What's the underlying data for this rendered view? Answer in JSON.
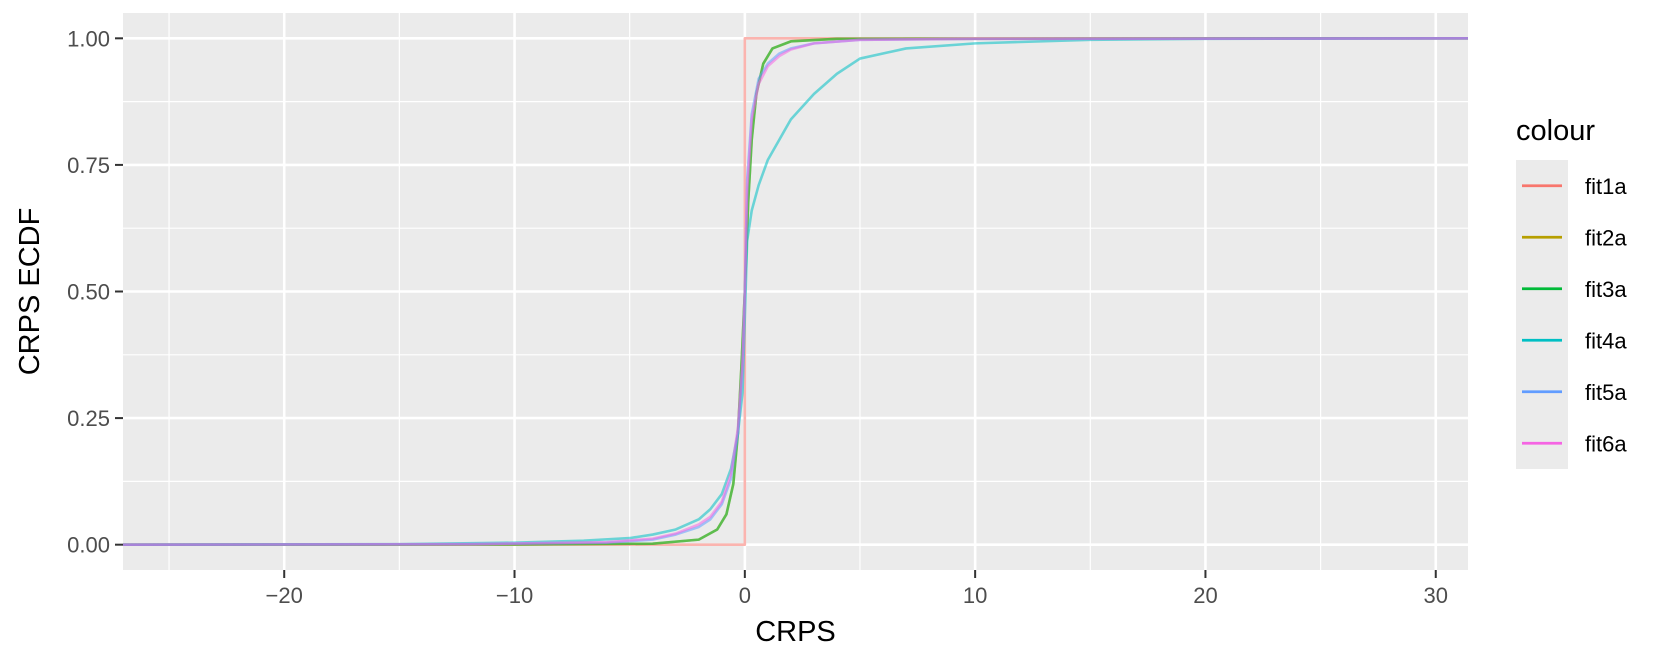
{
  "chart_data": {
    "type": "line",
    "title": "",
    "xlabel": "CRPS",
    "ylabel": "CRPS ECDF",
    "xlim": [
      -27,
      31.4
    ],
    "ylim": [
      -0.05,
      1.05
    ],
    "x_major_ticks": [
      -20,
      -10,
      0,
      10,
      20,
      30
    ],
    "x_tick_labels": [
      "−20",
      "−10",
      "0",
      "10",
      "20",
      "30"
    ],
    "x_minor_ticks": [
      -25,
      -15,
      -5,
      5,
      15,
      25
    ],
    "y_major_ticks": [
      0,
      0.25,
      0.5,
      0.75,
      1
    ],
    "y_tick_labels": [
      "0.00",
      "0.25",
      "0.50",
      "0.75",
      "1.00"
    ],
    "y_minor_ticks": [
      0.125,
      0.375,
      0.625,
      0.875
    ],
    "grid": true,
    "legend": {
      "title": "colour",
      "position": "right"
    },
    "series": [
      {
        "name": "fit1a",
        "color": "#F8766D",
        "points": [
          [
            -27,
            0
          ],
          [
            0,
            0
          ],
          [
            0,
            1
          ],
          [
            31.4,
            1
          ]
        ]
      },
      {
        "name": "fit2a",
        "color": "#B79F00",
        "points": [
          [
            -27,
            0
          ],
          [
            -10,
            0.0005
          ],
          [
            -4,
            0.002
          ],
          [
            -2,
            0.01
          ],
          [
            -1.2,
            0.03
          ],
          [
            -0.8,
            0.06
          ],
          [
            -0.5,
            0.12
          ],
          [
            -0.3,
            0.22
          ],
          [
            -0.15,
            0.35
          ],
          [
            0,
            0.5
          ],
          [
            0.15,
            0.68
          ],
          [
            0.3,
            0.8
          ],
          [
            0.5,
            0.89
          ],
          [
            0.8,
            0.95
          ],
          [
            1.2,
            0.98
          ],
          [
            2,
            0.994
          ],
          [
            4,
            0.999
          ],
          [
            31.4,
            1
          ]
        ]
      },
      {
        "name": "fit3a",
        "color": "#00BA38",
        "points": [
          [
            -27,
            0
          ],
          [
            -10,
            0.0005
          ],
          [
            -4,
            0.002
          ],
          [
            -2,
            0.01
          ],
          [
            -1.2,
            0.03
          ],
          [
            -0.8,
            0.06
          ],
          [
            -0.5,
            0.12
          ],
          [
            -0.3,
            0.22
          ],
          [
            -0.15,
            0.35
          ],
          [
            0,
            0.5
          ],
          [
            0.15,
            0.68
          ],
          [
            0.3,
            0.8
          ],
          [
            0.5,
            0.89
          ],
          [
            0.8,
            0.95
          ],
          [
            1.2,
            0.98
          ],
          [
            2,
            0.994
          ],
          [
            4,
            0.999
          ],
          [
            31.4,
            1
          ]
        ]
      },
      {
        "name": "fit4a",
        "color": "#00BFC4",
        "points": [
          [
            -27,
            0
          ],
          [
            -15,
            0.001
          ],
          [
            -10,
            0.004
          ],
          [
            -7,
            0.008
          ],
          [
            -5,
            0.013
          ],
          [
            -4,
            0.02
          ],
          [
            -3,
            0.03
          ],
          [
            -2,
            0.05
          ],
          [
            -1.5,
            0.07
          ],
          [
            -1,
            0.1
          ],
          [
            -0.6,
            0.15
          ],
          [
            -0.3,
            0.22
          ],
          [
            -0.1,
            0.3
          ],
          [
            0,
            0.45
          ],
          [
            0.1,
            0.6
          ],
          [
            0.3,
            0.66
          ],
          [
            0.6,
            0.71
          ],
          [
            1,
            0.76
          ],
          [
            1.5,
            0.8
          ],
          [
            2,
            0.84
          ],
          [
            3,
            0.89
          ],
          [
            4,
            0.93
          ],
          [
            5,
            0.96
          ],
          [
            7,
            0.98
          ],
          [
            10,
            0.99
          ],
          [
            15,
            0.997
          ],
          [
            20,
            0.999
          ],
          [
            31.4,
            1
          ]
        ]
      },
      {
        "name": "fit5a",
        "color": "#619CFF",
        "points": [
          [
            -27,
            0
          ],
          [
            -12,
            0.001
          ],
          [
            -6,
            0.004
          ],
          [
            -4,
            0.01
          ],
          [
            -3,
            0.02
          ],
          [
            -2,
            0.035
          ],
          [
            -1.5,
            0.05
          ],
          [
            -1,
            0.08
          ],
          [
            -0.6,
            0.13
          ],
          [
            -0.3,
            0.22
          ],
          [
            -0.1,
            0.35
          ],
          [
            0,
            0.5
          ],
          [
            0.1,
            0.72
          ],
          [
            0.3,
            0.85
          ],
          [
            0.6,
            0.92
          ],
          [
            1,
            0.95
          ],
          [
            1.5,
            0.97
          ],
          [
            2,
            0.98
          ],
          [
            3,
            0.99
          ],
          [
            5,
            0.997
          ],
          [
            10,
            0.999
          ],
          [
            31.4,
            1
          ]
        ]
      },
      {
        "name": "fit6a",
        "color": "#F564E3",
        "points": [
          [
            -27,
            0
          ],
          [
            -12,
            0.001
          ],
          [
            -6,
            0.005
          ],
          [
            -4,
            0.012
          ],
          [
            -3,
            0.022
          ],
          [
            -2,
            0.04
          ],
          [
            -1.5,
            0.055
          ],
          [
            -1,
            0.085
          ],
          [
            -0.6,
            0.14
          ],
          [
            -0.3,
            0.23
          ],
          [
            -0.1,
            0.36
          ],
          [
            0,
            0.5
          ],
          [
            0.1,
            0.7
          ],
          [
            0.3,
            0.84
          ],
          [
            0.6,
            0.91
          ],
          [
            1,
            0.945
          ],
          [
            1.5,
            0.965
          ],
          [
            2,
            0.978
          ],
          [
            3,
            0.99
          ],
          [
            5,
            0.997
          ],
          [
            10,
            0.999
          ],
          [
            31.4,
            1
          ]
        ]
      }
    ]
  }
}
